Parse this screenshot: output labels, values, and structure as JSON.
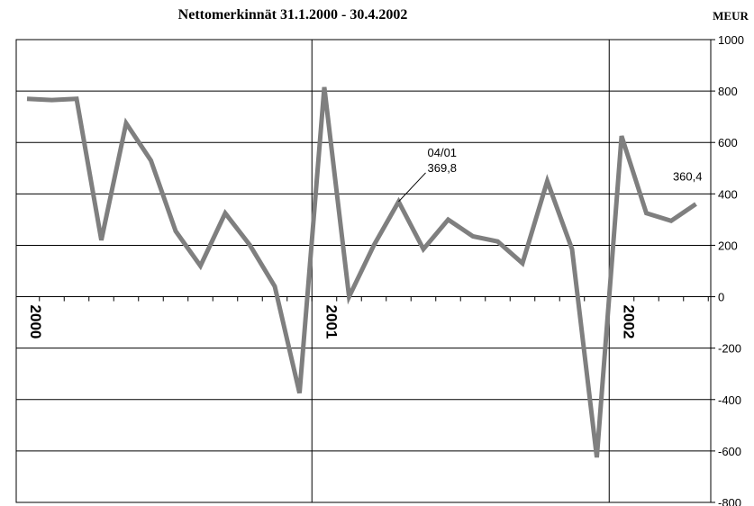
{
  "chart_data": {
    "type": "line",
    "title": "Nettomerkinnät 31.1.2000 - 30.4.2002",
    "unit_label": "MEUR",
    "ylim": [
      -800,
      1000
    ],
    "y_ticks": [
      1000,
      800,
      600,
      400,
      200,
      0,
      -200,
      -400,
      -600,
      -800
    ],
    "y_tick_labels": [
      "1000",
      "800",
      "600",
      "400",
      "200",
      "0",
      "-200",
      "-400",
      "-600",
      "-800"
    ],
    "grid": true,
    "year_labels": [
      {
        "label": "2000",
        "month_index": 0
      },
      {
        "label": "2001",
        "month_index": 12
      },
      {
        "label": "2002",
        "month_index": 24
      }
    ],
    "x": [
      "01/00",
      "02/00",
      "03/00",
      "04/00",
      "05/00",
      "06/00",
      "07/00",
      "08/00",
      "09/00",
      "10/00",
      "11/00",
      "12/00",
      "01/01",
      "02/01",
      "03/01",
      "04/01",
      "05/01",
      "06/01",
      "07/01",
      "08/01",
      "09/01",
      "10/01",
      "11/01",
      "12/01",
      "01/02",
      "02/02",
      "03/02",
      "04/02"
    ],
    "series": [
      {
        "color": "#7f7f7f",
        "values": [
          770,
          765,
          770,
          220,
          675,
          530,
          255,
          120,
          325,
          200,
          40,
          -375,
          815,
          0,
          200,
          369.8,
          185,
          300,
          235,
          215,
          130,
          450,
          185,
          -625,
          625,
          325,
          295,
          360.4
        ]
      }
    ],
    "annotations": [
      {
        "index": 15,
        "lines": [
          "04/01",
          "369,8"
        ]
      },
      {
        "index": 27,
        "lines": [
          "360,4"
        ]
      }
    ]
  }
}
